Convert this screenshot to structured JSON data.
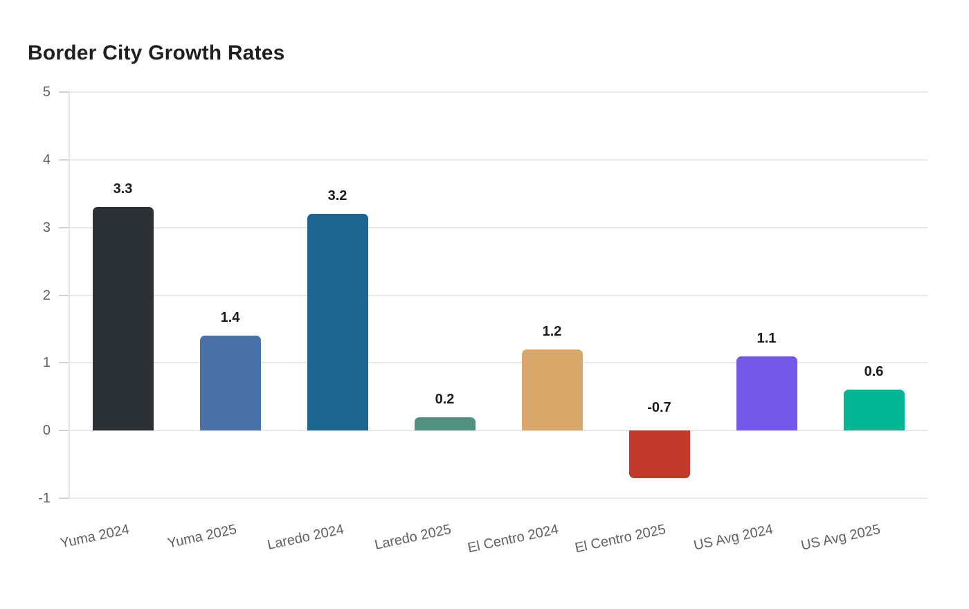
{
  "title": "Border City Growth Rates",
  "chart_data": {
    "type": "bar",
    "title": "Border City Growth Rates",
    "categories": [
      "Yuma 2024",
      "Yuma 2025",
      "Laredo 2024",
      "Laredo 2025",
      "El Centro 2024",
      "El Centro 2025",
      "US Avg 2024",
      "US Avg 2025"
    ],
    "values": [
      3.3,
      1.4,
      3.2,
      0.2,
      1.2,
      -0.7,
      1.1,
      0.6
    ],
    "data_labels": [
      "3.3",
      "1.4",
      "3.2",
      "0.2",
      "1.2",
      "-0.7",
      "1.1",
      "0.6"
    ],
    "bar_colors": [
      "#2b3134",
      "#4b71a9",
      "#1d648e",
      "#529180",
      "#d9a76a",
      "#c0392b",
      "#7459e9",
      "#02b694"
    ],
    "xlabel": "",
    "ylabel": "",
    "ylim": [
      -1,
      5
    ],
    "yticks": [
      5,
      4,
      3,
      2,
      1,
      0,
      -1
    ],
    "grid": true,
    "legend": false,
    "x_tick_rotation_deg": -12,
    "colors": {
      "background": "#ffffff",
      "title_text": "#1f1f1f",
      "axis_text": "#5d6165",
      "value_label_text": "#1a1a1a",
      "gridline": "#e9e9e9",
      "tick": "#d2d2d2",
      "axis_line": "#e3e3e3"
    }
  }
}
